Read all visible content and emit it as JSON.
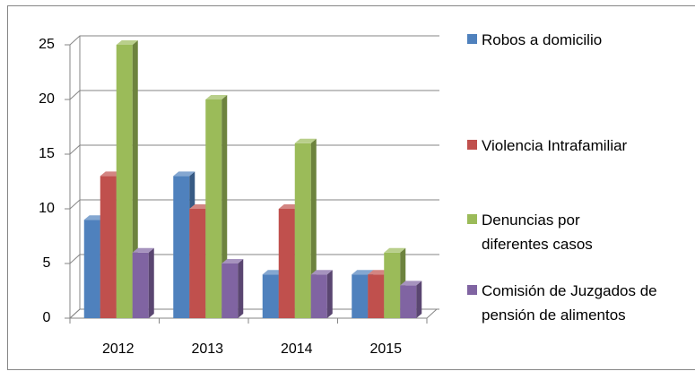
{
  "chart_data": {
    "type": "bar3d",
    "categories": [
      "2012",
      "2013",
      "2014",
      "2015"
    ],
    "series": [
      {
        "name": "Robos a domicilio",
        "color": "#4f81bd",
        "values": [
          9,
          13,
          4,
          4
        ]
      },
      {
        "name": "Violencia Intrafamiliar",
        "color": "#c0504d",
        "values": [
          13,
          10,
          10,
          4
        ]
      },
      {
        "name": "Denuncias por diferentes casos",
        "color": "#9bbb59",
        "values": [
          25,
          20,
          16,
          6
        ]
      },
      {
        "name": "Comisión de Juzgados de pensión de alimentos",
        "color": "#8064a2",
        "values": [
          6,
          5,
          4,
          3
        ]
      }
    ],
    "ylim": [
      0,
      25
    ],
    "yticks": [
      0,
      5,
      10,
      15,
      20,
      25
    ],
    "grid": true,
    "legend": "right"
  }
}
